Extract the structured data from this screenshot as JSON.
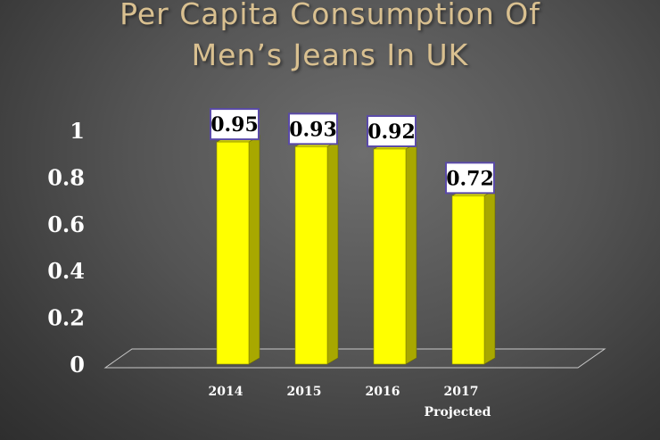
{
  "slide": {
    "title_line1": "Per Capita Consumption Of",
    "title_line2": "Men’s Jeans In UK"
  },
  "colors": {
    "title": "#d9c090",
    "bar_front": "#ffff00",
    "bar_side": "#a8a800",
    "bar_top": "#d8d800",
    "label_border": "#5a4aa8",
    "axis_text": "#ffffff"
  },
  "chart_data": {
    "type": "bar",
    "style": "3d-column",
    "categories": [
      "2014",
      "2015",
      "2016",
      "2017"
    ],
    "category_sublabels": [
      "",
      "",
      "",
      "Projected"
    ],
    "values": [
      0.95,
      0.93,
      0.92,
      0.72
    ],
    "data_labels": [
      "0.95",
      "0.93",
      "0.92",
      "0.72"
    ],
    "y_ticks": [
      "0",
      "0.2",
      "0.4",
      "0.6",
      "0.8",
      "1"
    ],
    "ylim": [
      0,
      1
    ],
    "title": "Per Capita Consumption Of Men’s Jeans In UK",
    "xlabel": "",
    "ylabel": "",
    "grid": false,
    "legend": "none"
  }
}
